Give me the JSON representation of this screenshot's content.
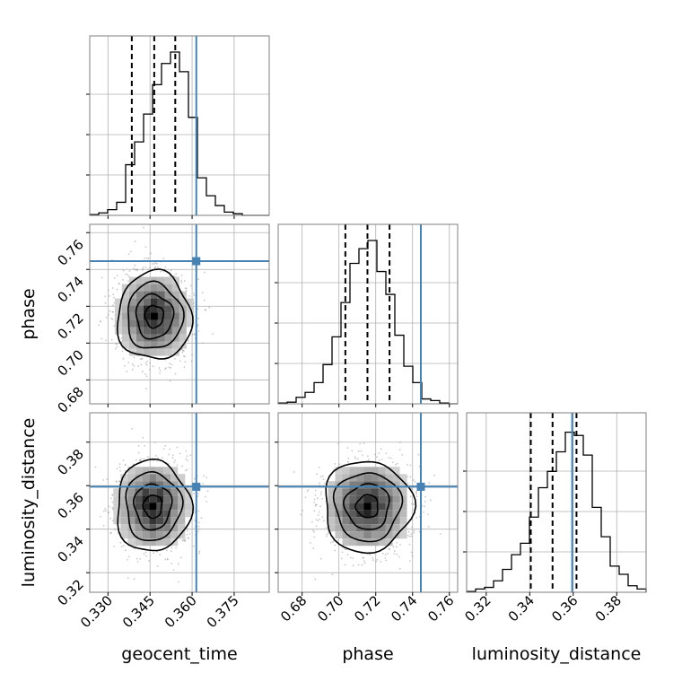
{
  "chart_data": {
    "type": "corner",
    "parameters": [
      "geocent_time",
      "phase",
      "luminosity_distance"
    ],
    "axes": {
      "geocent_time": {
        "label": "geocent_time",
        "range": [
          0.3235,
          0.3875
        ],
        "ticks": [
          0.33,
          0.345,
          0.36,
          0.375
        ],
        "tick_labels": [
          "0.330",
          "0.345",
          "0.360",
          "0.375"
        ],
        "median": 0.3465,
        "quantiles": [
          0.3385,
          0.3465,
          0.354
        ],
        "truth": 0.3615
      },
      "phase": {
        "label": "phase",
        "range": [
          0.667,
          0.7645
        ],
        "ticks": [
          0.68,
          0.7,
          0.72,
          0.74,
          0.76
        ],
        "tick_labels": [
          "0.68",
          "0.70",
          "0.72",
          "0.74",
          "0.76"
        ],
        "median": 0.7155,
        "quantiles": [
          0.7035,
          0.7155,
          0.7275
        ],
        "truth": 0.7445
      },
      "luminosity_distance": {
        "label": "luminosity_distance",
        "range": [
          0.311,
          0.3935
        ],
        "ticks": [
          0.32,
          0.34,
          0.36,
          0.38
        ],
        "tick_labels": [
          "0.32",
          "0.34",
          "0.36",
          "0.38"
        ],
        "median": 0.3505,
        "quantiles": [
          0.3405,
          0.3505,
          0.3615
        ],
        "truth": 0.3595
      }
    },
    "histograms": {
      "geocent_time": [
        0.005,
        0.015,
        0.035,
        0.08,
        0.31,
        0.45,
        0.62,
        0.8,
        0.93,
        1.0,
        0.88,
        0.6,
        0.23,
        0.12,
        0.06,
        0.02,
        0.01,
        0.0,
        0.0,
        0.0
      ],
      "phase": [
        0.005,
        0.01,
        0.04,
        0.07,
        0.13,
        0.24,
        0.41,
        0.62,
        0.86,
        0.95,
        1.0,
        0.81,
        0.67,
        0.42,
        0.23,
        0.13,
        0.03,
        0.02,
        0.005,
        0.0
      ],
      "luminosity_distance": [
        0.005,
        0.02,
        0.03,
        0.07,
        0.14,
        0.23,
        0.3,
        0.46,
        0.64,
        0.74,
        0.86,
        0.98,
        0.96,
        0.84,
        0.52,
        0.34,
        0.16,
        0.11,
        0.04,
        0.02
      ]
    },
    "pairs": [
      {
        "x": "geocent_time",
        "y": "phase",
        "peak": [
          0.3465,
          0.7145
        ],
        "sigma": [
          0.0066,
          0.012
        ]
      },
      {
        "x": "geocent_time",
        "y": "luminosity_distance",
        "peak": [
          0.346,
          0.3505
        ],
        "sigma": [
          0.0066,
          0.0105
        ]
      },
      {
        "x": "phase",
        "y": "luminosity_distance",
        "peak": [
          0.7155,
          0.3505
        ],
        "sigma": [
          0.012,
          0.0105
        ]
      }
    ],
    "grid": true,
    "colors": {
      "truth": "#4682b4",
      "samples": "#808080",
      "contour": "#000000"
    }
  }
}
